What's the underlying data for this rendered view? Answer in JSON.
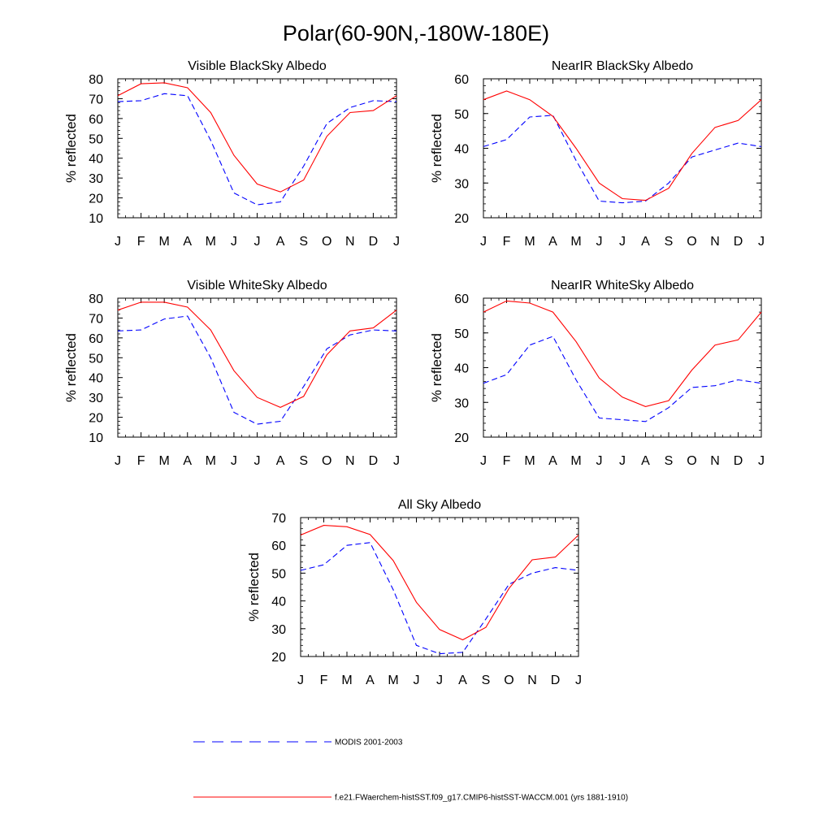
{
  "figure": {
    "title": "Polar(60-90N,-180W-180E)"
  },
  "legend": {
    "modis_label": "MODIS 2001-2003",
    "model_label": "f.e21.FWaerchem-histSST.f09_g17.CMIP6-histSST-WACCM.001 (yrs 1881-1910)"
  },
  "colors": {
    "modis": "#0000ff",
    "model": "#ff0000",
    "axis": "#000000"
  },
  "chart_data": [
    {
      "type": "line",
      "title": "Visible BlackSky Albedo",
      "ylabel": "% reflected",
      "categories": [
        "J",
        "F",
        "M",
        "A",
        "M",
        "J",
        "J",
        "A",
        "S",
        "O",
        "N",
        "D",
        "J"
      ],
      "ylim": [
        10,
        80
      ],
      "yticks": [
        10,
        20,
        30,
        40,
        50,
        60,
        70,
        80
      ],
      "series": [
        {
          "name": "MODIS 2001-2003",
          "style": "dashed",
          "color": "#0000ff",
          "values": [
            68.5,
            69,
            72.5,
            71.5,
            49,
            22.5,
            16.5,
            18,
            36,
            57.5,
            65.5,
            69,
            68.5
          ]
        },
        {
          "name": "f.e21.FWaerchem-histSST.f09_g17.CMIP6-histSST-WACCM.001 (yrs 1881-1910)",
          "style": "solid",
          "color": "#ff0000",
          "values": [
            71.5,
            77.5,
            78,
            75.5,
            63,
            41.5,
            27,
            23,
            29,
            51,
            63,
            64,
            71.5
          ]
        }
      ]
    },
    {
      "type": "line",
      "title": "NearIR BlackSky Albedo",
      "ylabel": "% reflected",
      "categories": [
        "J",
        "F",
        "M",
        "A",
        "M",
        "J",
        "J",
        "A",
        "S",
        "O",
        "N",
        "D",
        "J"
      ],
      "ylim": [
        20,
        60
      ],
      "yticks": [
        20,
        30,
        40,
        50,
        60
      ],
      "series": [
        {
          "name": "MODIS 2001-2003",
          "style": "dashed",
          "color": "#0000ff",
          "values": [
            40.5,
            42.5,
            49,
            49.5,
            36.5,
            24.8,
            24.3,
            24.8,
            30,
            37.5,
            39.5,
            41.5,
            40.5
          ]
        },
        {
          "name": "f.e21.FWaerchem-histSST.f09_g17.CMIP6-histSST-WACCM.001 (yrs 1881-1910)",
          "style": "solid",
          "color": "#ff0000",
          "values": [
            54,
            56.5,
            54,
            49.2,
            40,
            30,
            25.5,
            25,
            28.5,
            38.5,
            46,
            48,
            54
          ]
        }
      ]
    },
    {
      "type": "line",
      "title": "Visible WhiteSky Albedo",
      "ylabel": "% reflected",
      "categories": [
        "J",
        "F",
        "M",
        "A",
        "M",
        "J",
        "J",
        "A",
        "S",
        "O",
        "N",
        "D",
        "J"
      ],
      "ylim": [
        10,
        80
      ],
      "yticks": [
        10,
        20,
        30,
        40,
        50,
        60,
        70,
        80
      ],
      "series": [
        {
          "name": "MODIS 2001-2003",
          "style": "dashed",
          "color": "#0000ff",
          "values": [
            63.5,
            64,
            69.5,
            71,
            50,
            22.5,
            16.5,
            18,
            35.5,
            54.5,
            61.5,
            64,
            63.5
          ]
        },
        {
          "name": "f.e21.FWaerchem-histSST.f09_g17.CMIP6-histSST-WACCM.001 (yrs 1881-1910)",
          "style": "solid",
          "color": "#ff0000",
          "values": [
            74,
            78,
            78,
            75.5,
            64,
            43.5,
            30,
            25,
            30.5,
            51.5,
            63.5,
            65,
            74
          ]
        }
      ]
    },
    {
      "type": "line",
      "title": "NearIR WhiteSky Albedo",
      "ylabel": "% reflected",
      "categories": [
        "J",
        "F",
        "M",
        "A",
        "M",
        "J",
        "J",
        "A",
        "S",
        "O",
        "N",
        "D",
        "J"
      ],
      "ylim": [
        20,
        60
      ],
      "yticks": [
        20,
        30,
        40,
        50,
        60
      ],
      "series": [
        {
          "name": "MODIS 2001-2003",
          "style": "dashed",
          "color": "#0000ff",
          "values": [
            35.5,
            38,
            46.5,
            49,
            36.5,
            25.5,
            25,
            24.5,
            28.5,
            34.3,
            34.8,
            36.5,
            35.5
          ]
        },
        {
          "name": "f.e21.FWaerchem-histSST.f09_g17.CMIP6-histSST-WACCM.001 (yrs 1881-1910)",
          "style": "solid",
          "color": "#ff0000",
          "values": [
            56,
            59.2,
            58.6,
            56,
            47.5,
            37,
            31.5,
            28.8,
            30.5,
            39.3,
            46.5,
            48,
            56
          ]
        }
      ]
    },
    {
      "type": "line",
      "title": "All Sky Albedo",
      "ylabel": "% reflected",
      "categories": [
        "J",
        "F",
        "M",
        "A",
        "M",
        "J",
        "J",
        "A",
        "S",
        "O",
        "N",
        "D",
        "J"
      ],
      "ylim": [
        20,
        70
      ],
      "yticks": [
        20,
        30,
        40,
        50,
        60,
        70
      ],
      "series": [
        {
          "name": "MODIS 2001-2003",
          "style": "dashed",
          "color": "#0000ff",
          "values": [
            51,
            53,
            60,
            61,
            44,
            24,
            21,
            21.5,
            33.5,
            46,
            50,
            52,
            51
          ]
        },
        {
          "name": "f.e21.FWaerchem-histSST.f09_g17.CMIP6-histSST-WACCM.001 (yrs 1881-1910)",
          "style": "solid",
          "color": "#ff0000",
          "values": [
            63.7,
            67.2,
            66.7,
            63.9,
            54.5,
            39.5,
            29.7,
            26,
            30.5,
            44.5,
            54.8,
            55.8,
            63.7
          ]
        }
      ]
    }
  ]
}
